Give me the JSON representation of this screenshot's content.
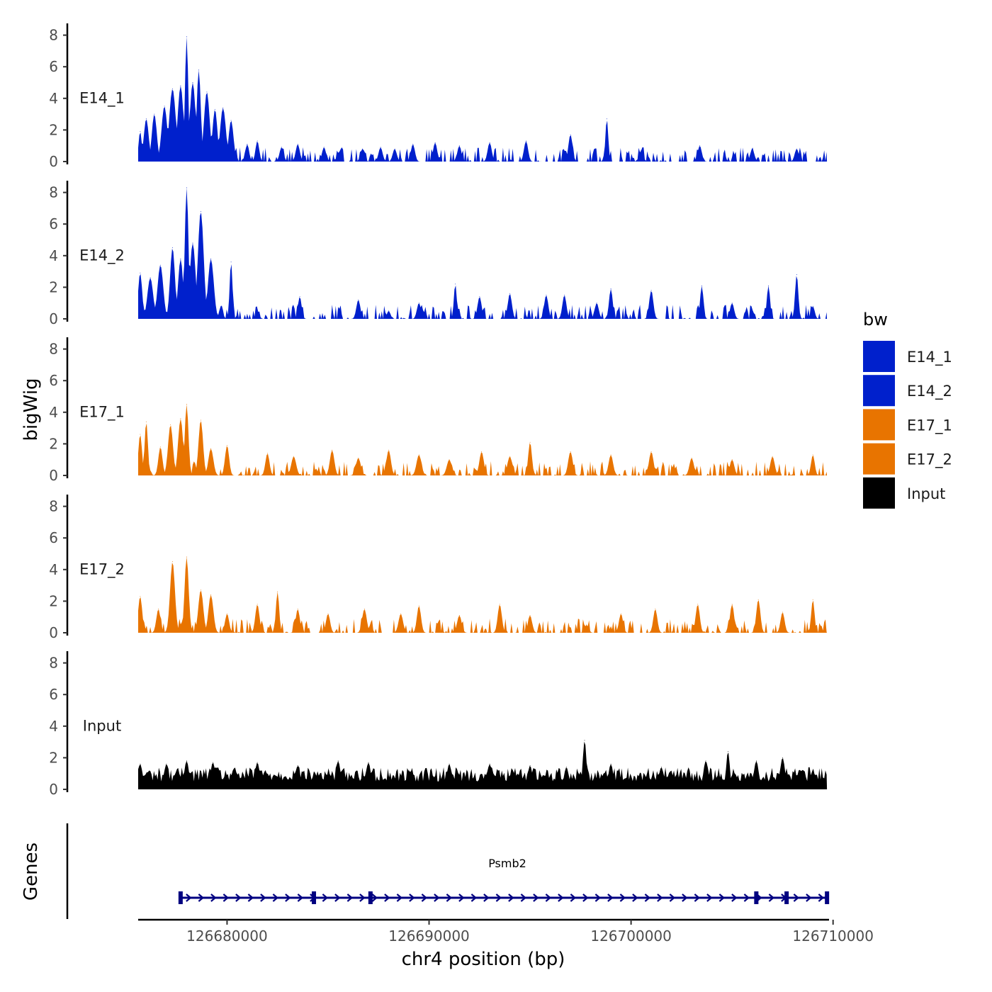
{
  "chart_data": {
    "type": "area",
    "ylabel": "bigWig",
    "xlabel": "chr4 position (bp)",
    "xlim": [
      126675600,
      126709800
    ],
    "ylim": [
      0,
      8.8
    ],
    "yticks": [
      0,
      2,
      4,
      6,
      8
    ],
    "xticks": [
      126680000,
      126690000,
      126700000,
      126710000
    ],
    "xtick_labels": [
      "126680000",
      "126690000",
      "126700000",
      "126710000"
    ],
    "window": [
      126675600,
      126709700
    ],
    "legend": {
      "title": "bw",
      "position": "right",
      "entries": [
        {
          "label": "E14_1",
          "color": "#0020CC"
        },
        {
          "label": "E14_2",
          "color": "#0020CC"
        },
        {
          "label": "E17_1",
          "color": "#E87400"
        },
        {
          "label": "E17_2",
          "color": "#E87400"
        },
        {
          "label": "Input",
          "color": "#000000"
        }
      ]
    },
    "series": [
      {
        "name": "E14_1",
        "color": "#0020CC",
        "peaks": [
          [
            126675700,
            1.9,
            80
          ],
          [
            126676000,
            2.7,
            120
          ],
          [
            126676400,
            3.0,
            120
          ],
          [
            126676900,
            3.5,
            140
          ],
          [
            126677300,
            4.6,
            160
          ],
          [
            126677700,
            4.8,
            140
          ],
          [
            126678000,
            7.9,
            80
          ],
          [
            126678300,
            5.0,
            140
          ],
          [
            126678600,
            5.8,
            100
          ],
          [
            126679000,
            4.4,
            140
          ],
          [
            126679400,
            3.3,
            120
          ],
          [
            126679800,
            3.4,
            140
          ],
          [
            126680200,
            2.6,
            120
          ],
          [
            126681000,
            1.1,
            90
          ],
          [
            126681500,
            1.3,
            90
          ],
          [
            126682700,
            0.9,
            100
          ],
          [
            126683500,
            1.1,
            100
          ],
          [
            126684800,
            0.9,
            100
          ],
          [
            126686700,
            0.8,
            100
          ],
          [
            126687600,
            0.9,
            100
          ],
          [
            126688300,
            0.8,
            100
          ],
          [
            126689200,
            1.1,
            100
          ],
          [
            126690300,
            1.2,
            100
          ],
          [
            126691500,
            1.0,
            100
          ],
          [
            126693000,
            1.2,
            100
          ],
          [
            126694800,
            1.3,
            100
          ],
          [
            126697000,
            1.7,
            100
          ],
          [
            126698800,
            2.7,
            70
          ],
          [
            126700500,
            0.7,
            100
          ],
          [
            126703400,
            1.0,
            100
          ],
          [
            126706000,
            0.8,
            100
          ],
          [
            126708200,
            0.8,
            100
          ]
        ]
      },
      {
        "name": "E14_2",
        "color": "#0020CC",
        "peaks": [
          [
            126675700,
            2.9,
            100
          ],
          [
            126676200,
            2.6,
            140
          ],
          [
            126676700,
            3.4,
            140
          ],
          [
            126677300,
            4.5,
            120
          ],
          [
            126677700,
            3.8,
            120
          ],
          [
            126678000,
            8.3,
            90
          ],
          [
            126678300,
            4.8,
            140
          ],
          [
            126678700,
            6.8,
            140
          ],
          [
            126679200,
            3.8,
            140
          ],
          [
            126679700,
            0.8,
            90
          ],
          [
            126680200,
            3.6,
            70
          ],
          [
            126681500,
            0.5,
            90
          ],
          [
            126683600,
            1.4,
            90
          ],
          [
            126686500,
            1.2,
            100
          ],
          [
            126688000,
            0.5,
            90
          ],
          [
            126689500,
            1.0,
            100
          ],
          [
            126691300,
            2.2,
            70
          ],
          [
            126692500,
            1.4,
            100
          ],
          [
            126694000,
            1.6,
            100
          ],
          [
            126695800,
            1.5,
            100
          ],
          [
            126696700,
            1.5,
            100
          ],
          [
            126698300,
            1.0,
            100
          ],
          [
            126699000,
            1.9,
            90
          ],
          [
            126701000,
            1.8,
            100
          ],
          [
            126703500,
            2.1,
            80
          ],
          [
            126705000,
            1.0,
            100
          ],
          [
            126706800,
            2.1,
            80
          ],
          [
            126708200,
            2.8,
            80
          ],
          [
            126709000,
            0.8,
            90
          ]
        ]
      },
      {
        "name": "E17_1",
        "color": "#E87400",
        "peaks": [
          [
            126675700,
            2.6,
            90
          ],
          [
            126676000,
            3.4,
            80
          ],
          [
            126676700,
            1.8,
            100
          ],
          [
            126677200,
            3.2,
            120
          ],
          [
            126677700,
            3.6,
            120
          ],
          [
            126678000,
            4.5,
            90
          ],
          [
            126678700,
            3.5,
            110
          ],
          [
            126679200,
            1.7,
            120
          ],
          [
            126680000,
            1.9,
            100
          ],
          [
            126682000,
            1.4,
            100
          ],
          [
            126683300,
            1.2,
            120
          ],
          [
            126685200,
            1.6,
            110
          ],
          [
            126686500,
            1.1,
            120
          ],
          [
            126688000,
            1.6,
            110
          ],
          [
            126689500,
            1.3,
            120
          ],
          [
            126691000,
            1.0,
            120
          ],
          [
            126692600,
            1.5,
            110
          ],
          [
            126694000,
            1.2,
            120
          ],
          [
            126695000,
            2.1,
            90
          ],
          [
            126697000,
            1.5,
            110
          ],
          [
            126699000,
            1.3,
            110
          ],
          [
            126701000,
            1.5,
            110
          ],
          [
            126703000,
            1.1,
            110
          ],
          [
            126705000,
            1.0,
            110
          ],
          [
            126707000,
            1.2,
            110
          ],
          [
            126709000,
            1.3,
            90
          ]
        ]
      },
      {
        "name": "E17_2",
        "color": "#E87400",
        "peaks": [
          [
            126675700,
            2.3,
            100
          ],
          [
            126676600,
            1.5,
            100
          ],
          [
            126677300,
            4.5,
            120
          ],
          [
            126678000,
            4.8,
            100
          ],
          [
            126678700,
            2.7,
            120
          ],
          [
            126679200,
            2.4,
            120
          ],
          [
            126680000,
            1.2,
            100
          ],
          [
            126681500,
            1.8,
            100
          ],
          [
            126682500,
            2.6,
            80
          ],
          [
            126683500,
            1.5,
            100
          ],
          [
            126685000,
            1.2,
            100
          ],
          [
            126686800,
            1.5,
            110
          ],
          [
            126688600,
            1.2,
            110
          ],
          [
            126689500,
            1.7,
            100
          ],
          [
            126691500,
            1.1,
            110
          ],
          [
            126693500,
            1.8,
            100
          ],
          [
            126695000,
            1.1,
            100
          ],
          [
            126697800,
            0.5,
            100
          ],
          [
            126699500,
            1.2,
            100
          ],
          [
            126701200,
            1.5,
            100
          ],
          [
            126703300,
            1.8,
            100
          ],
          [
            126705000,
            1.8,
            100
          ],
          [
            126706300,
            2.1,
            100
          ],
          [
            126707500,
            1.3,
            100
          ],
          [
            126709000,
            2.1,
            80
          ]
        ]
      },
      {
        "name": "Input",
        "color": "#000000",
        "peaks": [
          [
            126675700,
            1.6,
            120
          ],
          [
            126677000,
            1.6,
            120
          ],
          [
            126678000,
            1.8,
            120
          ],
          [
            126679300,
            1.7,
            120
          ],
          [
            126681500,
            1.7,
            120
          ],
          [
            126683500,
            1.5,
            120
          ],
          [
            126685500,
            1.8,
            120
          ],
          [
            126687000,
            1.7,
            120
          ],
          [
            126689000,
            1.2,
            120
          ],
          [
            126691000,
            1.6,
            120
          ],
          [
            126693000,
            1.6,
            120
          ],
          [
            126695000,
            1.5,
            120
          ],
          [
            126696800,
            1.4,
            120
          ],
          [
            126697700,
            3.1,
            90
          ],
          [
            126699000,
            1.6,
            120
          ],
          [
            126701500,
            1.4,
            120
          ],
          [
            126703700,
            1.8,
            120
          ],
          [
            126704800,
            2.4,
            90
          ],
          [
            126706200,
            1.8,
            120
          ],
          [
            126707500,
            2.0,
            120
          ],
          [
            126709000,
            1.2,
            120
          ]
        ]
      }
    ],
    "genes": {
      "title": "Genes",
      "items": [
        {
          "name": "Psmb2",
          "start": 126677700,
          "end": 126709700,
          "strand": "+",
          "color": "#000080",
          "exons": [
            126677700,
            126684300,
            126687100,
            126706200,
            126707700,
            126709700
          ]
        }
      ]
    }
  }
}
